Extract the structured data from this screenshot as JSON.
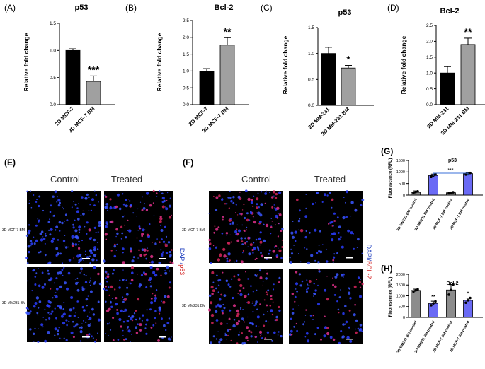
{
  "panels": {
    "A": "(A)",
    "B": "(B)",
    "C": "(C)",
    "D": "(D)",
    "E": "(E)",
    "F": "(F)",
    "G": "(G)",
    "H": "(H)"
  },
  "micro": {
    "control_label": "Control",
    "treated_label": "Treated",
    "E": {
      "rows": [
        "3D MCF-7 BM",
        "3D MM231 BM"
      ],
      "stain": [
        "DAPI/",
        "p53"
      ],
      "stain_colors": [
        "#1f3fbf",
        "#d42020"
      ]
    },
    "F": {
      "rows": [
        "3D MCF-7 BM",
        "3D MM231 BM"
      ],
      "stain": [
        "DAPI/",
        "BCL-2"
      ],
      "stain_colors": [
        "#1f3fbf",
        "#d42020"
      ]
    }
  },
  "colors": {
    "black_bar": "#000000",
    "gray_bar": "#a0a0a0",
    "blue_bar": "#6a6af5",
    "gray_bar2": "#8c8c8c",
    "bracket": "#3a6fd8"
  },
  "chart_data": [
    {
      "id": "A",
      "type": "bar",
      "title": "p53",
      "ylabel": "Relative fold change",
      "categories": [
        "2D MCF-7",
        "3D MCF-7 BM"
      ],
      "values": [
        1.0,
        0.43
      ],
      "errors": [
        0.03,
        0.1
      ],
      "bar_colors": [
        "#000000",
        "#a0a0a0"
      ],
      "ylim": [
        0,
        1.5
      ],
      "yticks": [
        "0.0",
        "0.5",
        "1.0",
        "1.5"
      ],
      "significance": [
        {
          "bar": 1,
          "label": "***"
        }
      ]
    },
    {
      "id": "B",
      "type": "bar",
      "title": "Bcl-2",
      "ylabel": "Relative fold change",
      "categories": [
        "2D MCF-7",
        "3D MCF-7 BM"
      ],
      "values": [
        1.0,
        1.77
      ],
      "errors": [
        0.07,
        0.22
      ],
      "bar_colors": [
        "#000000",
        "#a0a0a0"
      ],
      "ylim": [
        0,
        2.5
      ],
      "yticks": [
        "0.0",
        "0.5",
        "1.0",
        "1.5",
        "2.0",
        "2.5"
      ],
      "significance": [
        {
          "bar": 1,
          "label": "**"
        }
      ]
    },
    {
      "id": "C",
      "type": "bar",
      "title": "p53",
      "ylabel": "Relative fold change",
      "categories": [
        "2D MM-231",
        "3D MM-231 BM"
      ],
      "values": [
        1.0,
        0.72
      ],
      "errors": [
        0.12,
        0.05
      ],
      "bar_colors": [
        "#000000",
        "#a0a0a0"
      ],
      "ylim": [
        0,
        1.5
      ],
      "yticks": [
        "0.0",
        "0.5",
        "1.0",
        "1.5"
      ],
      "significance": [
        {
          "bar": 1,
          "label": "*"
        }
      ]
    },
    {
      "id": "D",
      "type": "bar",
      "title": "Bcl-2",
      "ylabel": "Relative fold change",
      "categories": [
        "2D MM-231",
        "3D MM-231 BM"
      ],
      "values": [
        1.0,
        1.9
      ],
      "errors": [
        0.2,
        0.2
      ],
      "bar_colors": [
        "#000000",
        "#a0a0a0"
      ],
      "ylim": [
        0,
        2.5
      ],
      "yticks": [
        "0.0",
        "0.5",
        "1.0",
        "1.5",
        "2.0",
        "2.5"
      ],
      "significance": [
        {
          "bar": 1,
          "label": "**"
        }
      ]
    },
    {
      "id": "G",
      "type": "bar",
      "title": "p53",
      "ylabel": "Fluorescence (RFU)",
      "categories": [
        "3D MM231 BM control",
        "3D MM231 BM treated",
        "3D MCF-7 BM control",
        "3D MCF-7 BM treated"
      ],
      "values": [
        120,
        850,
        100,
        930
      ],
      "errors": [
        60,
        60,
        30,
        40
      ],
      "bar_colors": [
        "#8c8c8c",
        "#6a6af5",
        "#8c8c8c",
        "#6a6af5"
      ],
      "ylim": [
        0,
        1500
      ],
      "yticks": [
        "0",
        "500",
        "1000",
        "1500"
      ],
      "points": [
        [
          90,
          130,
          160
        ],
        [
          790,
          850,
          900
        ],
        [
          80,
          100,
          120
        ],
        [
          890,
          930,
          960
        ]
      ],
      "significance": [
        {
          "bracket": [
            1,
            3
          ],
          "label": "***"
        }
      ]
    },
    {
      "id": "H",
      "type": "bar",
      "title": "Bcl-2",
      "ylabel": "Fluorescence (RFU)",
      "categories": [
        "3D MM231 BM control",
        "3D MM231 BM treated",
        "3D MCF-7 BM control",
        "3D MCF-7 BM treated"
      ],
      "values": [
        1250,
        650,
        1270,
        790
      ],
      "errors": [
        60,
        100,
        250,
        110
      ],
      "bar_colors": [
        "#8c8c8c",
        "#6a6af5",
        "#8c8c8c",
        "#6a6af5"
      ],
      "ylim": [
        0,
        2000
      ],
      "yticks": [
        "0",
        "500",
        "1000",
        "1500",
        "2000"
      ],
      "points": [
        [
          1200,
          1250,
          1300
        ],
        [
          560,
          650,
          740
        ],
        [
          1050,
          1270,
          1520
        ],
        [
          680,
          790,
          900
        ]
      ],
      "significance": [
        {
          "bar": 1,
          "label": "**"
        },
        {
          "bar": 3,
          "label": "*"
        }
      ]
    }
  ]
}
